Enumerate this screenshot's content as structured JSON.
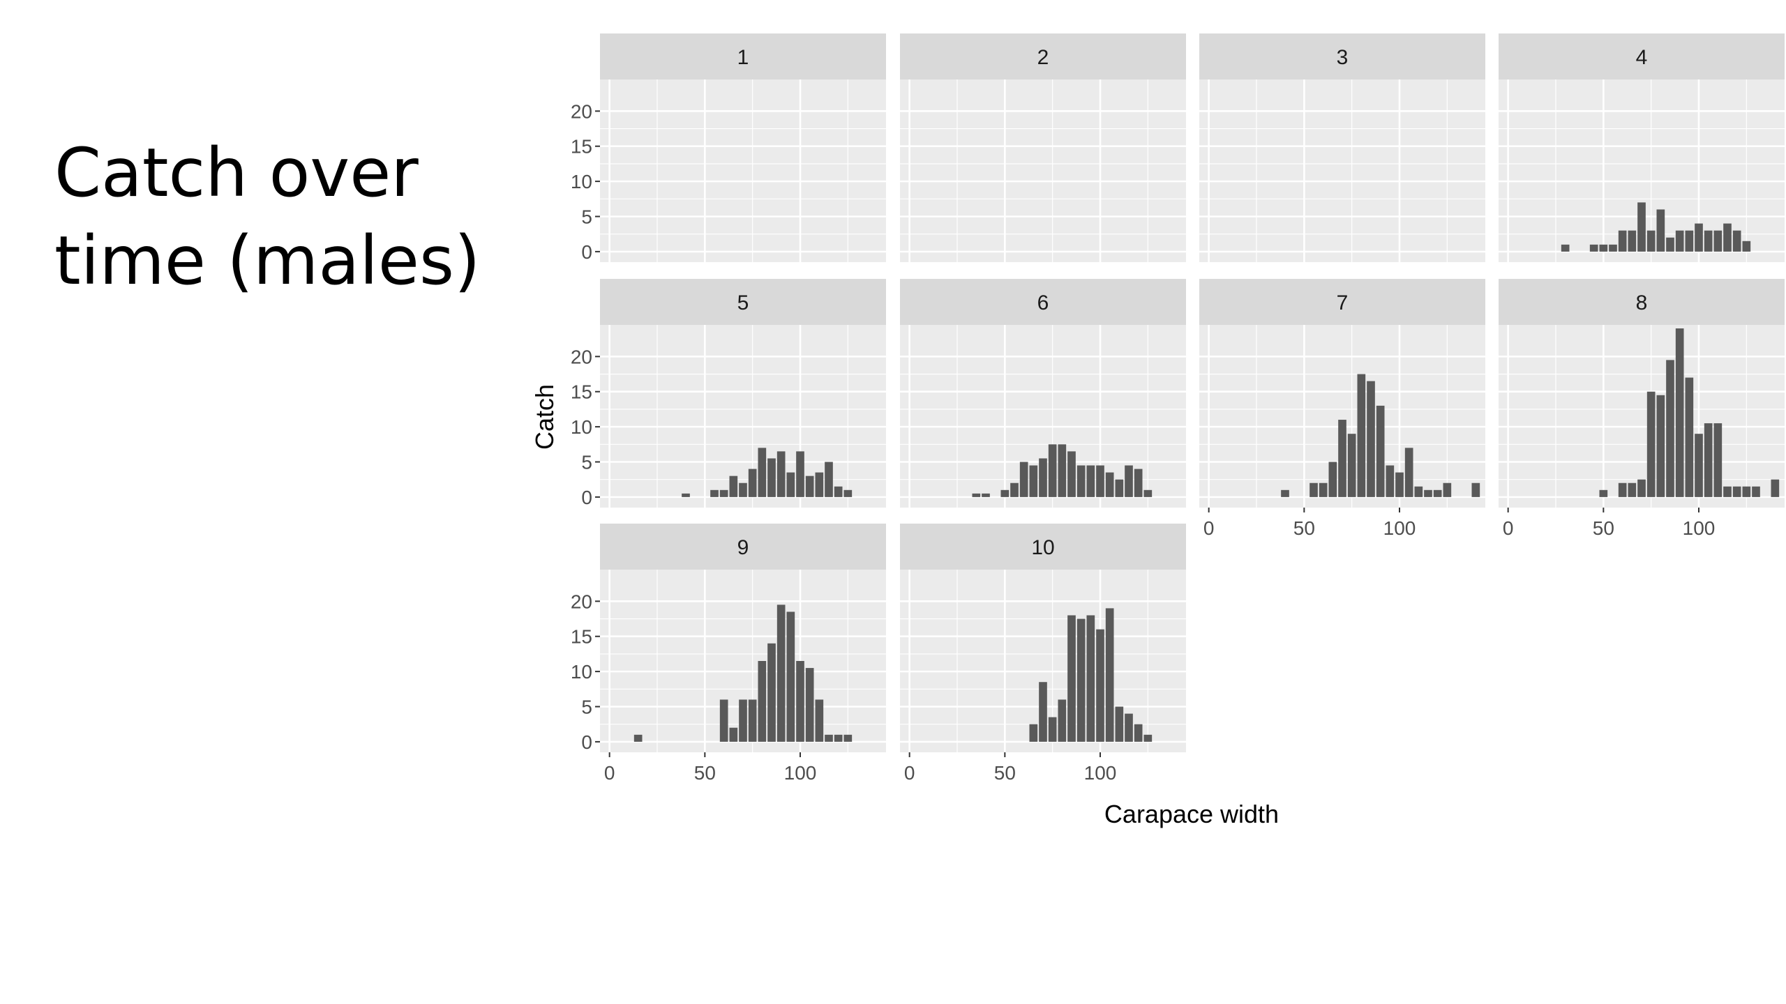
{
  "slide": {
    "title_line1": "Catch over",
    "title_line2": "time (males)"
  },
  "chart_data": {
    "type": "bar",
    "facet_layout": "wrap 4 columns",
    "xlabel": "Carapace width",
    "ylabel": "Catch",
    "xlim": [
      -5,
      145
    ],
    "ylim": [
      -1.5,
      24.5
    ],
    "xticks": [
      0,
      50,
      100
    ],
    "yticks": [
      0,
      5,
      10,
      15,
      20
    ],
    "grid": true,
    "bin_width": 5,
    "colors": {
      "bar": "#595959",
      "panel_bg": "#ebebeb",
      "strip_bg": "#d9d9d9",
      "grid": "#ffffff",
      "axis_text": "#4d4d4d"
    },
    "panels": [
      {
        "label": "1",
        "bars": []
      },
      {
        "label": "2",
        "bars": []
      },
      {
        "label": "3",
        "bars": []
      },
      {
        "label": "4",
        "bars": [
          [
            30,
            1
          ],
          [
            45,
            1
          ],
          [
            50,
            1
          ],
          [
            55,
            1
          ],
          [
            60,
            3
          ],
          [
            65,
            3
          ],
          [
            70,
            7
          ],
          [
            75,
            3
          ],
          [
            80,
            6
          ],
          [
            85,
            2
          ],
          [
            90,
            3
          ],
          [
            95,
            3
          ],
          [
            100,
            4
          ],
          [
            105,
            3
          ],
          [
            110,
            3
          ],
          [
            115,
            4
          ],
          [
            120,
            3
          ],
          [
            125,
            1.5
          ]
        ]
      },
      {
        "label": "5",
        "bars": [
          [
            40,
            0.5
          ],
          [
            55,
            1
          ],
          [
            60,
            1
          ],
          [
            65,
            3
          ],
          [
            70,
            2
          ],
          [
            75,
            4
          ],
          [
            80,
            7
          ],
          [
            85,
            5.5
          ],
          [
            90,
            6.5
          ],
          [
            95,
            3.5
          ],
          [
            100,
            6.5
          ],
          [
            105,
            3
          ],
          [
            110,
            3.5
          ],
          [
            115,
            5
          ],
          [
            120,
            1.5
          ],
          [
            125,
            1
          ]
        ]
      },
      {
        "label": "6",
        "bars": [
          [
            35,
            0.5
          ],
          [
            40,
            0.5
          ],
          [
            50,
            1
          ],
          [
            55,
            2
          ],
          [
            60,
            5
          ],
          [
            65,
            4.5
          ],
          [
            70,
            5.5
          ],
          [
            75,
            7.5
          ],
          [
            80,
            7.5
          ],
          [
            85,
            6.5
          ],
          [
            90,
            4.5
          ],
          [
            95,
            4.5
          ],
          [
            100,
            4.5
          ],
          [
            105,
            3.5
          ],
          [
            110,
            2.5
          ],
          [
            115,
            4.5
          ],
          [
            120,
            4
          ],
          [
            125,
            1
          ]
        ]
      },
      {
        "label": "7",
        "bars": [
          [
            40,
            1
          ],
          [
            55,
            2
          ],
          [
            60,
            2
          ],
          [
            65,
            5
          ],
          [
            70,
            11
          ],
          [
            75,
            9
          ],
          [
            80,
            17.5
          ],
          [
            85,
            16.5
          ],
          [
            90,
            13
          ],
          [
            95,
            4.5
          ],
          [
            100,
            3.5
          ],
          [
            105,
            7
          ],
          [
            110,
            1.5
          ],
          [
            115,
            1
          ],
          [
            120,
            1
          ],
          [
            125,
            2
          ],
          [
            140,
            2
          ]
        ]
      },
      {
        "label": "8",
        "bars": [
          [
            50,
            1
          ],
          [
            60,
            2
          ],
          [
            65,
            2
          ],
          [
            70,
            2.5
          ],
          [
            75,
            15
          ],
          [
            80,
            14.5
          ],
          [
            85,
            19.5
          ],
          [
            90,
            24
          ],
          [
            95,
            17
          ],
          [
            100,
            9
          ],
          [
            105,
            10.5
          ],
          [
            110,
            10.5
          ],
          [
            115,
            1.5
          ],
          [
            120,
            1.5
          ],
          [
            125,
            1.5
          ],
          [
            130,
            1.5
          ],
          [
            140,
            2.5
          ]
        ]
      },
      {
        "label": "9",
        "bars": [
          [
            15,
            1
          ],
          [
            60,
            6
          ],
          [
            65,
            2
          ],
          [
            70,
            6
          ],
          [
            75,
            6
          ],
          [
            80,
            11.5
          ],
          [
            85,
            14
          ],
          [
            90,
            19.5
          ],
          [
            95,
            18.5
          ],
          [
            100,
            11.5
          ],
          [
            105,
            10.5
          ],
          [
            110,
            6
          ],
          [
            115,
            1
          ],
          [
            120,
            1
          ],
          [
            125,
            1
          ]
        ]
      },
      {
        "label": "10",
        "bars": [
          [
            65,
            2.5
          ],
          [
            70,
            8.5
          ],
          [
            75,
            3.5
          ],
          [
            80,
            6
          ],
          [
            85,
            18
          ],
          [
            90,
            17.5
          ],
          [
            95,
            18
          ],
          [
            100,
            16
          ],
          [
            105,
            19
          ],
          [
            110,
            5
          ],
          [
            115,
            4
          ],
          [
            120,
            2.5
          ],
          [
            125,
            1
          ]
        ]
      }
    ]
  }
}
